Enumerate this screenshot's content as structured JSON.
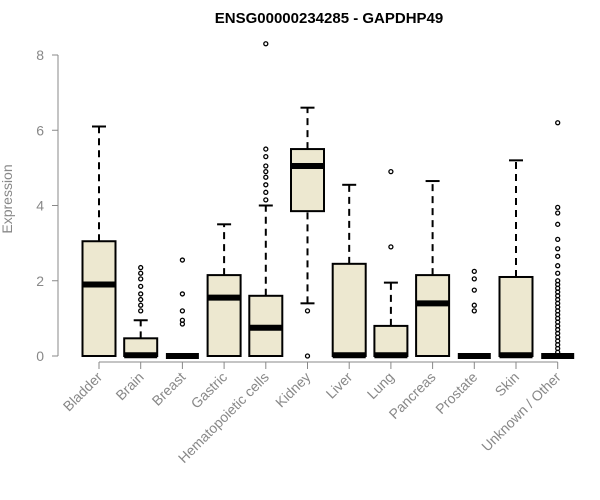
{
  "chart_data": {
    "type": "boxplot",
    "title": "ENSG00000234285 - GAPDHP49",
    "ylabel": "Expression",
    "xlabel": "",
    "ylim": [
      0,
      8
    ],
    "yticks": [
      0,
      2,
      4,
      6,
      8
    ],
    "grid": false,
    "colors": {
      "box_fill": "#ede8d0",
      "box_stroke": "#000000",
      "axis": "#888888",
      "title": "#000000"
    },
    "categories": [
      "Bladder",
      "Brain",
      "Breast",
      "Gastric",
      "Hematopoietic cells",
      "Kidney",
      "Liver",
      "Lung",
      "Pancreas",
      "Prostate",
      "Skin",
      "Unknown / Other"
    ],
    "boxes": [
      {
        "category": "Bladder",
        "min": 0,
        "q1": 0,
        "median": 1.9,
        "q3": 3.05,
        "max": 6.1,
        "outliers": []
      },
      {
        "category": "Brain",
        "min": 0,
        "q1": 0,
        "median": 0.02,
        "q3": 0.47,
        "max": 0.95,
        "outliers": [
          1.2,
          1.35,
          1.5,
          1.65,
          1.85,
          2.05,
          2.2,
          2.35
        ]
      },
      {
        "category": "Breast",
        "min": 0,
        "q1": 0,
        "median": 0,
        "q3": 0,
        "max": 0,
        "outliers": [
          0.85,
          0.95,
          1.2,
          1.65,
          2.55
        ]
      },
      {
        "category": "Gastric",
        "min": 0,
        "q1": 0,
        "median": 1.55,
        "q3": 2.15,
        "max": 3.5,
        "outliers": []
      },
      {
        "category": "Hematopoietic cells",
        "min": 0,
        "q1": 0,
        "median": 0.75,
        "q3": 1.6,
        "max": 4.0,
        "outliers": [
          4.15,
          4.35,
          4.55,
          4.75,
          4.9,
          5.05,
          5.3,
          5.5,
          8.3
        ]
      },
      {
        "category": "Kidney",
        "min": 1.4,
        "q1": 3.85,
        "median": 5.05,
        "q3": 5.5,
        "max": 6.6,
        "outliers": [
          0,
          1.2
        ]
      },
      {
        "category": "Liver",
        "min": 0,
        "q1": 0,
        "median": 0.02,
        "q3": 2.45,
        "max": 4.55,
        "outliers": []
      },
      {
        "category": "Lung",
        "min": 0,
        "q1": 0,
        "median": 0.02,
        "q3": 0.8,
        "max": 1.95,
        "outliers": [
          2.9,
          4.9
        ]
      },
      {
        "category": "Pancreas",
        "min": 0,
        "q1": 0,
        "median": 1.4,
        "q3": 2.15,
        "max": 4.65,
        "outliers": []
      },
      {
        "category": "Prostate",
        "min": 0,
        "q1": 0,
        "median": 0,
        "q3": 0,
        "max": 0,
        "outliers": [
          1.2,
          1.35,
          1.75,
          2.05,
          2.25
        ]
      },
      {
        "category": "Skin",
        "min": 0,
        "q1": 0,
        "median": 0.02,
        "q3": 2.1,
        "max": 5.2,
        "outliers": []
      },
      {
        "category": "Unknown / Other",
        "min": 0,
        "q1": 0,
        "median": 0,
        "q3": 0,
        "max": 0,
        "outliers": [
          0.1,
          0.2,
          0.3,
          0.4,
          0.5,
          0.6,
          0.7,
          0.8,
          0.9,
          1.0,
          1.1,
          1.2,
          1.3,
          1.4,
          1.5,
          1.6,
          1.7,
          1.8,
          1.9,
          2.0,
          2.2,
          2.4,
          2.65,
          2.85,
          3.1,
          3.5,
          3.8,
          3.95,
          6.2
        ]
      }
    ]
  }
}
